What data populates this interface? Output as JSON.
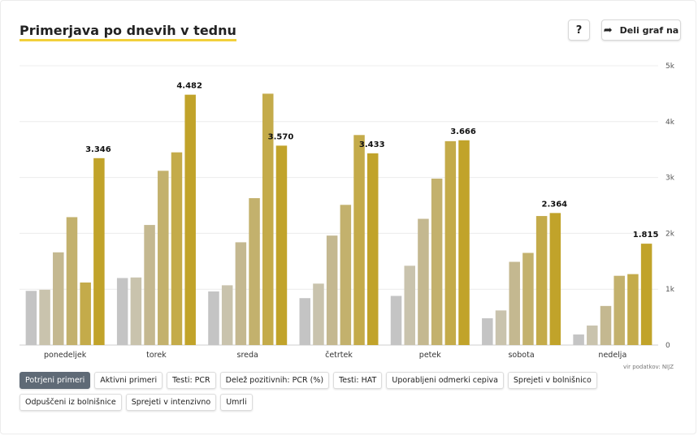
{
  "header": {
    "title": "Primerjava po dnevih v tednu",
    "help_label": "?",
    "share_label": "Deli graf na",
    "share_icon": "share-arrow-icon"
  },
  "source_note": "vir podatkov: NIJZ",
  "tabs": [
    {
      "label": "Potrjeni primeri",
      "active": true
    },
    {
      "label": "Aktivni primeri",
      "active": false
    },
    {
      "label": "Testi: PCR",
      "active": false
    },
    {
      "label": "Delež pozitivnih: PCR (%)",
      "active": false
    },
    {
      "label": "Testi: HAT",
      "active": false
    },
    {
      "label": "Uporabljeni odmerki cepiva",
      "active": false
    },
    {
      "label": "Sprejeti v bolnišnico",
      "active": false
    },
    {
      "label": "Odpuščeni iz bolnišnice",
      "active": false
    },
    {
      "label": "Sprejeti v intenzivno",
      "active": false
    },
    {
      "label": "Umrli",
      "active": false
    }
  ],
  "chart_data": {
    "type": "bar",
    "categories": [
      "ponedeljek",
      "torek",
      "sreda",
      "četrtek",
      "petek",
      "sobota",
      "nedelja"
    ],
    "series": [
      {
        "values": [
          970,
          1200,
          960,
          840,
          880,
          480,
          190
        ],
        "color": "#c4c4c4"
      },
      {
        "values": [
          990,
          1210,
          1070,
          1100,
          1420,
          620,
          350
        ],
        "color": "#c9c3ad"
      },
      {
        "values": [
          1660,
          2150,
          1840,
          1960,
          2260,
          1490,
          700
        ],
        "color": "#c4b890"
      },
      {
        "values": [
          2290,
          3120,
          2630,
          2510,
          2980,
          1650,
          1240
        ],
        "color": "#c3b16d"
      },
      {
        "values": [
          1120,
          3450,
          4500,
          3760,
          3650,
          2310,
          1270
        ],
        "color": "#c4ab4a"
      },
      {
        "values": [
          3346,
          4482,
          3570,
          3433,
          3666,
          2364,
          1815
        ],
        "color": "#c1a32a"
      }
    ],
    "data_labels": [
      "3.346",
      "4.482",
      "3.570",
      "3.433",
      "3.666",
      "2.364",
      "1.815"
    ],
    "y_ticks": [
      0,
      1000,
      2000,
      3000,
      4000,
      5000
    ],
    "y_tick_labels": [
      "0",
      "1k",
      "2k",
      "3k",
      "4k",
      "5k"
    ],
    "ylim": [
      0,
      5000
    ],
    "grid": true,
    "y_axis_side": "right"
  }
}
